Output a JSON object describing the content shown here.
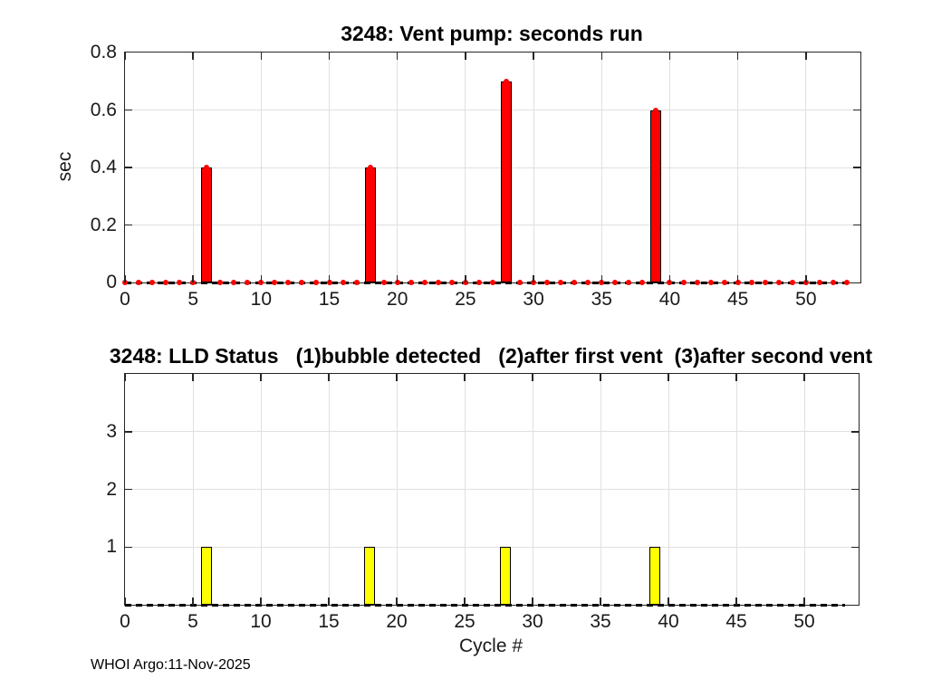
{
  "figure": {
    "footer": "WHOI Argo:11-Nov-2025"
  },
  "chart_data": [
    {
      "type": "bar",
      "title": "3248: Vent pump: seconds run",
      "xlabel": "",
      "ylabel": "sec",
      "xlim": [
        0,
        54
      ],
      "ylim": [
        0,
        0.8
      ],
      "xticks": [
        0,
        5,
        10,
        15,
        20,
        25,
        30,
        35,
        40,
        45,
        50
      ],
      "xtick_labels": [
        "0",
        "5",
        "10",
        "15",
        "20",
        "25",
        "30",
        "35",
        "40",
        "45",
        "50"
      ],
      "yticks": [
        0,
        0.2,
        0.4,
        0.6,
        0.8
      ],
      "ytick_labels": [
        "0",
        "0.2",
        "0.4",
        "0.6",
        "0.8"
      ],
      "grid": true,
      "legend": null,
      "bar_color": "#ff0000",
      "bar_edge_color": "#000000",
      "marker": "dot",
      "marker_color": "#ff0000",
      "zero_line_style": "dashed-black",
      "x": [
        0,
        1,
        2,
        3,
        4,
        5,
        6,
        7,
        8,
        9,
        10,
        11,
        12,
        13,
        14,
        15,
        16,
        17,
        18,
        19,
        20,
        21,
        22,
        23,
        24,
        25,
        26,
        27,
        28,
        29,
        30,
        31,
        32,
        33,
        34,
        35,
        36,
        37,
        38,
        39,
        40,
        41,
        42,
        43,
        44,
        45,
        46,
        47,
        48,
        49,
        50,
        51,
        52,
        53
      ],
      "values": [
        0,
        0,
        0,
        0,
        0,
        0,
        0.4,
        0,
        0,
        0,
        0,
        0,
        0,
        0,
        0,
        0,
        0,
        0,
        0.4,
        0,
        0,
        0,
        0,
        0,
        0,
        0,
        0,
        0,
        0.7,
        0,
        0,
        0,
        0,
        0,
        0,
        0,
        0,
        0,
        0,
        0.6,
        0,
        0,
        0,
        0,
        0,
        0,
        0,
        0,
        0,
        0,
        0,
        0,
        0,
        0
      ]
    },
    {
      "type": "bar",
      "title": "3248: LLD Status   (1)bubble detected   (2)after first vent  (3)after second vent",
      "xlabel": "Cycle #",
      "ylabel": "",
      "xlim": [
        0,
        54
      ],
      "ylim": [
        0,
        4
      ],
      "xticks": [
        0,
        5,
        10,
        15,
        20,
        25,
        30,
        35,
        40,
        45,
        50
      ],
      "xtick_labels": [
        "0",
        "5",
        "10",
        "15",
        "20",
        "25",
        "30",
        "35",
        "40",
        "45",
        "50"
      ],
      "yticks": [
        1,
        2,
        3
      ],
      "ytick_labels": [
        "1",
        "2",
        "3"
      ],
      "grid": true,
      "legend": null,
      "bar_color": "#ffff00",
      "bar_edge_color": "#000000",
      "marker": "none",
      "marker_color": null,
      "zero_line_style": "dashed-black",
      "x": [
        0,
        1,
        2,
        3,
        4,
        5,
        6,
        7,
        8,
        9,
        10,
        11,
        12,
        13,
        14,
        15,
        16,
        17,
        18,
        19,
        20,
        21,
        22,
        23,
        24,
        25,
        26,
        27,
        28,
        29,
        30,
        31,
        32,
        33,
        34,
        35,
        36,
        37,
        38,
        39,
        40,
        41,
        42,
        43,
        44,
        45,
        46,
        47,
        48,
        49,
        50,
        51,
        52,
        53
      ],
      "values": [
        0,
        0,
        0,
        0,
        0,
        0,
        1,
        0,
        0,
        0,
        0,
        0,
        0,
        0,
        0,
        0,
        0,
        0,
        1,
        0,
        0,
        0,
        0,
        0,
        0,
        0,
        0,
        0,
        1,
        0,
        0,
        0,
        0,
        0,
        0,
        0,
        0,
        0,
        0,
        1,
        0,
        0,
        0,
        0,
        0,
        0,
        0,
        0,
        0,
        0,
        0,
        0,
        0,
        0
      ]
    }
  ]
}
